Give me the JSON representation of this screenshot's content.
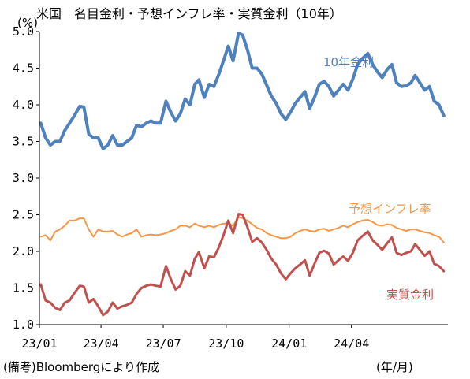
{
  "chart_data": {
    "type": "line",
    "title": "米国　名目金利・予想インフレ率・実質金利（10年）",
    "y_unit": "(%)",
    "x_unit": "(年/月)",
    "source": "(備考)Bloombergにより作成",
    "ylim": [
      1.0,
      5.0
    ],
    "yticks": [
      "1.0",
      "1.5",
      "2.0",
      "2.5",
      "3.0",
      "3.5",
      "4.0",
      "4.5",
      "5.0"
    ],
    "xlim": [
      "2023-01-01",
      "2024-08-20"
    ],
    "xticks": [
      {
        "label": "23/01",
        "date": "2023-01-01"
      },
      {
        "label": "23/04",
        "date": "2023-04-01"
      },
      {
        "label": "23/07",
        "date": "2023-07-01"
      },
      {
        "label": "23/10",
        "date": "2023-10-01"
      },
      {
        "label": "24/01",
        "date": "2024-01-01"
      },
      {
        "label": "24/04",
        "date": "2024-04-01"
      }
    ],
    "grid": false,
    "series": [
      {
        "name": "10年金利",
        "color": "#4F81BD",
        "points": [
          [
            "2023-01-03",
            3.75
          ],
          [
            "2023-01-10",
            3.55
          ],
          [
            "2023-01-17",
            3.45
          ],
          [
            "2023-01-24",
            3.5
          ],
          [
            "2023-01-31",
            3.5
          ],
          [
            "2023-02-07",
            3.65
          ],
          [
            "2023-02-14",
            3.75
          ],
          [
            "2023-02-21",
            3.85
          ],
          [
            "2023-03-01",
            3.98
          ],
          [
            "2023-03-07",
            3.97
          ],
          [
            "2023-03-14",
            3.6
          ],
          [
            "2023-03-21",
            3.55
          ],
          [
            "2023-03-28",
            3.55
          ],
          [
            "2023-04-04",
            3.4
          ],
          [
            "2023-04-11",
            3.45
          ],
          [
            "2023-04-18",
            3.58
          ],
          [
            "2023-04-25",
            3.45
          ],
          [
            "2023-05-02",
            3.45
          ],
          [
            "2023-05-09",
            3.5
          ],
          [
            "2023-05-16",
            3.55
          ],
          [
            "2023-05-23",
            3.72
          ],
          [
            "2023-05-30",
            3.7
          ],
          [
            "2023-06-06",
            3.75
          ],
          [
            "2023-06-13",
            3.78
          ],
          [
            "2023-06-20",
            3.75
          ],
          [
            "2023-06-27",
            3.75
          ],
          [
            "2023-07-05",
            4.05
          ],
          [
            "2023-07-12",
            3.9
          ],
          [
            "2023-07-19",
            3.78
          ],
          [
            "2023-07-26",
            3.88
          ],
          [
            "2023-08-02",
            4.08
          ],
          [
            "2023-08-09",
            4.0
          ],
          [
            "2023-08-16",
            4.28
          ],
          [
            "2023-08-22",
            4.34
          ],
          [
            "2023-08-30",
            4.1
          ],
          [
            "2023-09-06",
            4.28
          ],
          [
            "2023-09-13",
            4.25
          ],
          [
            "2023-09-20",
            4.41
          ],
          [
            "2023-09-27",
            4.6
          ],
          [
            "2023-10-04",
            4.8
          ],
          [
            "2023-10-11",
            4.6
          ],
          [
            "2023-10-19",
            4.98
          ],
          [
            "2023-10-25",
            4.95
          ],
          [
            "2023-11-01",
            4.75
          ],
          [
            "2023-11-08",
            4.5
          ],
          [
            "2023-11-15",
            4.5
          ],
          [
            "2023-11-22",
            4.42
          ],
          [
            "2023-11-29",
            4.27
          ],
          [
            "2023-12-06",
            4.12
          ],
          [
            "2023-12-13",
            4.02
          ],
          [
            "2023-12-20",
            3.88
          ],
          [
            "2023-12-27",
            3.8
          ],
          [
            "2024-01-03",
            3.9
          ],
          [
            "2024-01-10",
            4.02
          ],
          [
            "2024-01-17",
            4.1
          ],
          [
            "2024-01-24",
            4.18
          ],
          [
            "2024-01-31",
            3.95
          ],
          [
            "2024-02-07",
            4.1
          ],
          [
            "2024-02-14",
            4.28
          ],
          [
            "2024-02-21",
            4.32
          ],
          [
            "2024-02-28",
            4.25
          ],
          [
            "2024-03-06",
            4.12
          ],
          [
            "2024-03-13",
            4.2
          ],
          [
            "2024-03-20",
            4.28
          ],
          [
            "2024-03-27",
            4.2
          ],
          [
            "2024-04-03",
            4.35
          ],
          [
            "2024-04-10",
            4.55
          ],
          [
            "2024-04-17",
            4.63
          ],
          [
            "2024-04-25",
            4.7
          ],
          [
            "2024-05-02",
            4.55
          ],
          [
            "2024-05-09",
            4.45
          ],
          [
            "2024-05-16",
            4.37
          ],
          [
            "2024-05-23",
            4.48
          ],
          [
            "2024-05-30",
            4.55
          ],
          [
            "2024-06-06",
            4.3
          ],
          [
            "2024-06-13",
            4.25
          ],
          [
            "2024-06-20",
            4.26
          ],
          [
            "2024-06-27",
            4.3
          ],
          [
            "2024-07-03",
            4.4
          ],
          [
            "2024-07-10",
            4.3
          ],
          [
            "2024-07-17",
            4.2
          ],
          [
            "2024-07-24",
            4.25
          ],
          [
            "2024-07-31",
            4.05
          ],
          [
            "2024-08-07",
            4.0
          ],
          [
            "2024-08-14",
            3.85
          ]
        ]
      },
      {
        "name": "予想インフレ率",
        "color": "#F79646",
        "points": [
          [
            "2023-01-03",
            2.2
          ],
          [
            "2023-01-10",
            2.22
          ],
          [
            "2023-01-17",
            2.15
          ],
          [
            "2023-01-24",
            2.27
          ],
          [
            "2023-01-31",
            2.3
          ],
          [
            "2023-02-07",
            2.35
          ],
          [
            "2023-02-14",
            2.42
          ],
          [
            "2023-02-21",
            2.42
          ],
          [
            "2023-03-01",
            2.45
          ],
          [
            "2023-03-07",
            2.45
          ],
          [
            "2023-03-14",
            2.3
          ],
          [
            "2023-03-21",
            2.2
          ],
          [
            "2023-03-28",
            2.3
          ],
          [
            "2023-04-04",
            2.27
          ],
          [
            "2023-04-11",
            2.27
          ],
          [
            "2023-04-18",
            2.28
          ],
          [
            "2023-04-25",
            2.23
          ],
          [
            "2023-05-02",
            2.2
          ],
          [
            "2023-05-09",
            2.23
          ],
          [
            "2023-05-16",
            2.25
          ],
          [
            "2023-05-23",
            2.3
          ],
          [
            "2023-05-30",
            2.2
          ],
          [
            "2023-06-06",
            2.22
          ],
          [
            "2023-06-13",
            2.23
          ],
          [
            "2023-06-20",
            2.22
          ],
          [
            "2023-06-27",
            2.23
          ],
          [
            "2023-07-05",
            2.25
          ],
          [
            "2023-07-12",
            2.28
          ],
          [
            "2023-07-19",
            2.3
          ],
          [
            "2023-07-26",
            2.35
          ],
          [
            "2023-08-02",
            2.35
          ],
          [
            "2023-08-09",
            2.33
          ],
          [
            "2023-08-16",
            2.38
          ],
          [
            "2023-08-22",
            2.35
          ],
          [
            "2023-08-30",
            2.33
          ],
          [
            "2023-09-06",
            2.35
          ],
          [
            "2023-09-13",
            2.33
          ],
          [
            "2023-09-20",
            2.36
          ],
          [
            "2023-09-27",
            2.38
          ],
          [
            "2023-10-04",
            2.38
          ],
          [
            "2023-10-11",
            2.35
          ],
          [
            "2023-10-19",
            2.47
          ],
          [
            "2023-10-25",
            2.45
          ],
          [
            "2023-11-01",
            2.42
          ],
          [
            "2023-11-08",
            2.37
          ],
          [
            "2023-11-15",
            2.32
          ],
          [
            "2023-11-22",
            2.3
          ],
          [
            "2023-11-29",
            2.25
          ],
          [
            "2023-12-06",
            2.22
          ],
          [
            "2023-12-13",
            2.2
          ],
          [
            "2023-12-20",
            2.18
          ],
          [
            "2023-12-27",
            2.18
          ],
          [
            "2024-01-03",
            2.2
          ],
          [
            "2024-01-10",
            2.25
          ],
          [
            "2024-01-17",
            2.28
          ],
          [
            "2024-01-24",
            2.3
          ],
          [
            "2024-01-31",
            2.28
          ],
          [
            "2024-02-07",
            2.27
          ],
          [
            "2024-02-14",
            2.3
          ],
          [
            "2024-02-21",
            2.31
          ],
          [
            "2024-02-28",
            2.28
          ],
          [
            "2024-03-06",
            2.3
          ],
          [
            "2024-03-13",
            2.32
          ],
          [
            "2024-03-20",
            2.35
          ],
          [
            "2024-03-27",
            2.33
          ],
          [
            "2024-04-03",
            2.37
          ],
          [
            "2024-04-10",
            2.4
          ],
          [
            "2024-04-17",
            2.42
          ],
          [
            "2024-04-25",
            2.43
          ],
          [
            "2024-05-02",
            2.4
          ],
          [
            "2024-05-09",
            2.36
          ],
          [
            "2024-05-16",
            2.35
          ],
          [
            "2024-05-23",
            2.37
          ],
          [
            "2024-05-30",
            2.36
          ],
          [
            "2024-06-06",
            2.32
          ],
          [
            "2024-06-13",
            2.3
          ],
          [
            "2024-06-20",
            2.28
          ],
          [
            "2024-06-27",
            2.3
          ],
          [
            "2024-07-03",
            2.3
          ],
          [
            "2024-07-10",
            2.28
          ],
          [
            "2024-07-17",
            2.26
          ],
          [
            "2024-07-24",
            2.25
          ],
          [
            "2024-07-31",
            2.22
          ],
          [
            "2024-08-07",
            2.2
          ],
          [
            "2024-08-14",
            2.12
          ]
        ]
      },
      {
        "name": "実質金利",
        "color": "#C0504D",
        "points": [
          [
            "2023-01-03",
            1.55
          ],
          [
            "2023-01-10",
            1.33
          ],
          [
            "2023-01-17",
            1.3
          ],
          [
            "2023-01-24",
            1.23
          ],
          [
            "2023-01-31",
            1.2
          ],
          [
            "2023-02-07",
            1.3
          ],
          [
            "2023-02-14",
            1.33
          ],
          [
            "2023-02-21",
            1.43
          ],
          [
            "2023-03-01",
            1.53
          ],
          [
            "2023-03-07",
            1.52
          ],
          [
            "2023-03-14",
            1.3
          ],
          [
            "2023-03-21",
            1.35
          ],
          [
            "2023-03-28",
            1.25
          ],
          [
            "2023-04-04",
            1.13
          ],
          [
            "2023-04-11",
            1.18
          ],
          [
            "2023-04-18",
            1.3
          ],
          [
            "2023-04-25",
            1.22
          ],
          [
            "2023-05-02",
            1.25
          ],
          [
            "2023-05-09",
            1.27
          ],
          [
            "2023-05-16",
            1.3
          ],
          [
            "2023-05-23",
            1.42
          ],
          [
            "2023-05-30",
            1.5
          ],
          [
            "2023-06-06",
            1.53
          ],
          [
            "2023-06-13",
            1.55
          ],
          [
            "2023-06-20",
            1.53
          ],
          [
            "2023-06-27",
            1.52
          ],
          [
            "2023-07-05",
            1.8
          ],
          [
            "2023-07-12",
            1.62
          ],
          [
            "2023-07-19",
            1.48
          ],
          [
            "2023-07-26",
            1.53
          ],
          [
            "2023-08-02",
            1.73
          ],
          [
            "2023-08-09",
            1.67
          ],
          [
            "2023-08-16",
            1.9
          ],
          [
            "2023-08-22",
            1.99
          ],
          [
            "2023-08-30",
            1.77
          ],
          [
            "2023-09-06",
            1.93
          ],
          [
            "2023-09-13",
            1.92
          ],
          [
            "2023-09-20",
            2.05
          ],
          [
            "2023-09-27",
            2.22
          ],
          [
            "2023-10-04",
            2.42
          ],
          [
            "2023-10-11",
            2.25
          ],
          [
            "2023-10-19",
            2.51
          ],
          [
            "2023-10-25",
            2.5
          ],
          [
            "2023-11-01",
            2.33
          ],
          [
            "2023-11-08",
            2.13
          ],
          [
            "2023-11-15",
            2.18
          ],
          [
            "2023-11-22",
            2.12
          ],
          [
            "2023-11-29",
            2.02
          ],
          [
            "2023-12-06",
            1.9
          ],
          [
            "2023-12-13",
            1.82
          ],
          [
            "2023-12-20",
            1.7
          ],
          [
            "2023-12-27",
            1.62
          ],
          [
            "2024-01-03",
            1.7
          ],
          [
            "2024-01-10",
            1.77
          ],
          [
            "2024-01-17",
            1.82
          ],
          [
            "2024-01-24",
            1.88
          ],
          [
            "2024-01-31",
            1.67
          ],
          [
            "2024-02-07",
            1.83
          ],
          [
            "2024-02-14",
            1.98
          ],
          [
            "2024-02-21",
            2.01
          ],
          [
            "2024-02-28",
            1.97
          ],
          [
            "2024-03-06",
            1.82
          ],
          [
            "2024-03-13",
            1.88
          ],
          [
            "2024-03-20",
            1.93
          ],
          [
            "2024-03-27",
            1.87
          ],
          [
            "2024-04-03",
            1.98
          ],
          [
            "2024-04-10",
            2.15
          ],
          [
            "2024-04-17",
            2.21
          ],
          [
            "2024-04-25",
            2.27
          ],
          [
            "2024-05-02",
            2.15
          ],
          [
            "2024-05-09",
            2.09
          ],
          [
            "2024-05-16",
            2.02
          ],
          [
            "2024-05-23",
            2.11
          ],
          [
            "2024-05-30",
            2.19
          ],
          [
            "2024-06-06",
            1.98
          ],
          [
            "2024-06-13",
            1.95
          ],
          [
            "2024-06-20",
            1.98
          ],
          [
            "2024-06-27",
            2.0
          ],
          [
            "2024-07-03",
            2.1
          ],
          [
            "2024-07-10",
            2.02
          ],
          [
            "2024-07-17",
            1.94
          ],
          [
            "2024-07-24",
            2.0
          ],
          [
            "2024-07-31",
            1.83
          ],
          [
            "2024-08-07",
            1.8
          ],
          [
            "2024-08-14",
            1.73
          ]
        ]
      }
    ]
  }
}
